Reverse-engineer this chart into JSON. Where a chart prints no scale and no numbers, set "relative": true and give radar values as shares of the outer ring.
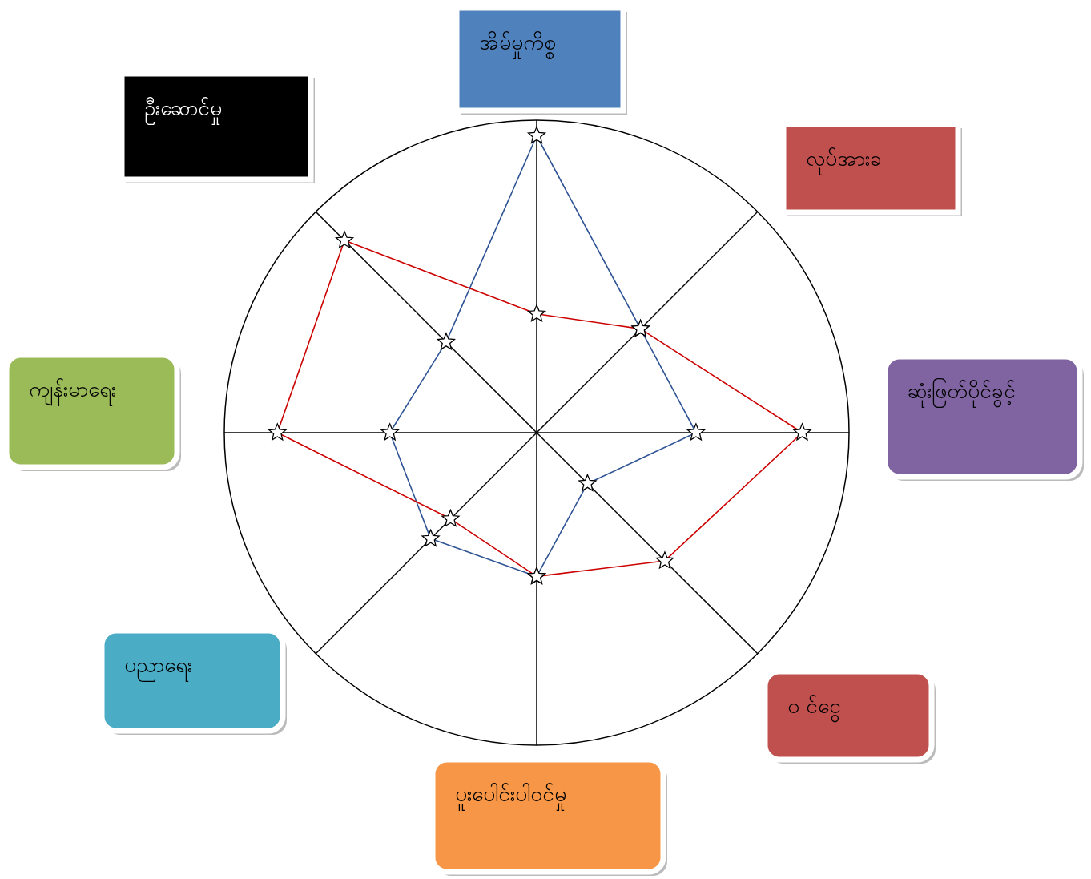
{
  "chart_data": {
    "type": "radar",
    "relative": true,
    "marker": "star",
    "line_style": "solid",
    "grid": true,
    "categories": [
      "အိမ်မှုကိစ္စ",
      "လုပ်အားခ",
      "ဆုံးဖြတ်ပိုင်ခွင့်",
      "ဝ င်ငွေ",
      "ပူးပေါင်းပါဝင်မှု",
      "ပညာရေး",
      "ကျန်းမာရေး",
      "ဦးဆောင်မှု"
    ],
    "series": [
      {
        "color": "#2e5395",
        "values": [
          0.95,
          0.47,
          0.51,
          0.23,
          0.46,
          0.48,
          0.47,
          0.41
        ]
      },
      {
        "color": "#cc0000",
        "values": [
          0.38,
          0.47,
          0.85,
          0.58,
          0.46,
          0.39,
          0.83,
          0.87
        ]
      }
    ]
  }
}
